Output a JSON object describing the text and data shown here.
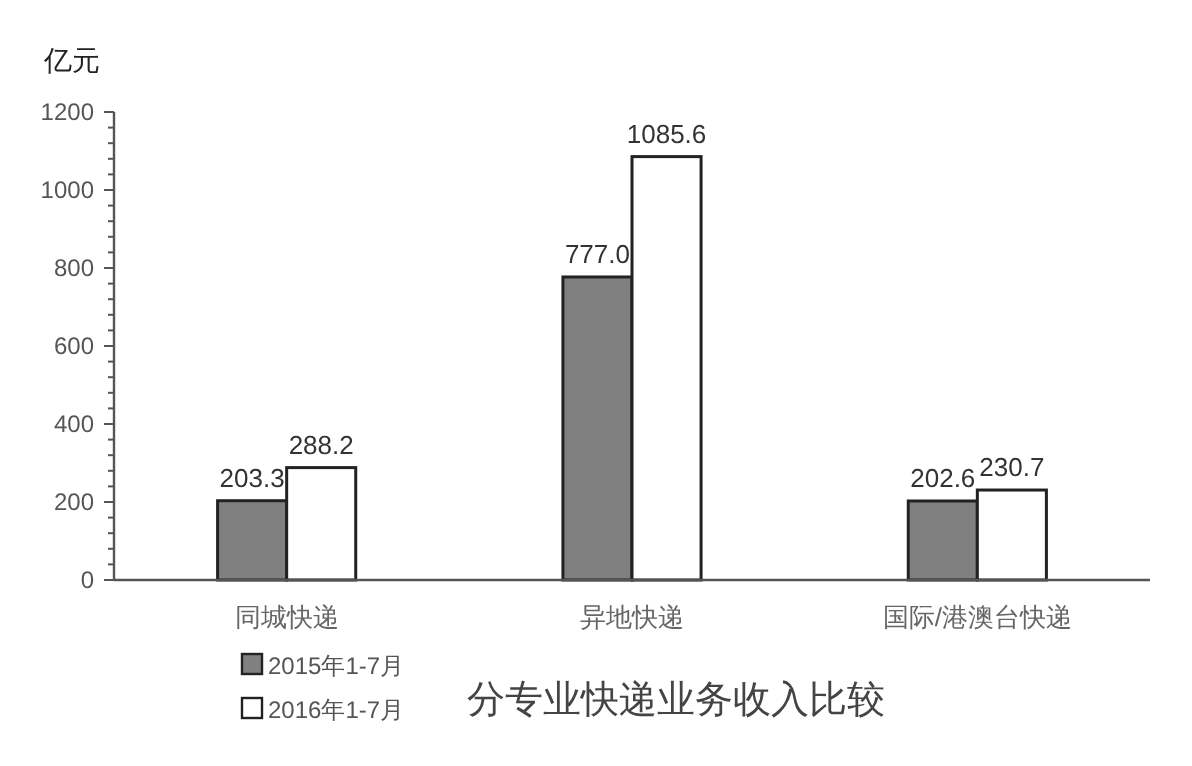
{
  "chart_data": {
    "type": "bar",
    "title": "分专业快递业务收入比较",
    "ylabel": "亿元",
    "categories": [
      "同城快递",
      "异地快递",
      "国际/港澳台快递"
    ],
    "series": [
      {
        "name": "2015年1-7月",
        "color": "#808080",
        "values": [
          203.3,
          777.0,
          202.6
        ],
        "value_labels": [
          "203.3",
          "777.0",
          "202.6"
        ]
      },
      {
        "name": "2016年1-7月",
        "color": "#ffffff",
        "values": [
          288.2,
          1085.6,
          230.7
        ],
        "value_labels": [
          "288.2",
          "1085.6",
          "230.7"
        ]
      }
    ],
    "ylim": [
      0,
      1200
    ],
    "yticks": [
      0,
      {
        "value": 40,
        "label": null
      },
      {
        "value": 80,
        "label": null
      },
      {
        "value": 120,
        "label": null
      },
      {
        "value": 160,
        "label": null
      },
      200,
      {
        "value": 240,
        "label": null
      },
      {
        "value": 280,
        "label": null
      },
      {
        "value": 320,
        "label": null
      },
      {
        "value": 360,
        "label": null
      },
      400,
      {
        "value": 440,
        "label": null
      },
      {
        "value": 480,
        "label": null
      },
      {
        "value": 520,
        "label": null
      },
      {
        "value": 560,
        "label": null
      },
      600,
      {
        "value": 640,
        "label": null
      },
      {
        "value": 680,
        "label": null
      },
      {
        "value": 720,
        "label": null
      },
      {
        "value": 760,
        "label": null
      },
      800,
      {
        "value": 840,
        "label": null
      },
      {
        "value": 880,
        "label": null
      },
      {
        "value": 920,
        "label": null
      },
      {
        "value": 960,
        "label": null
      },
      1000,
      {
        "value": 1040,
        "label": null
      },
      {
        "value": 1080,
        "label": null
      },
      {
        "value": 1120,
        "label": null
      },
      {
        "value": 1160,
        "label": null
      },
      1200
    ],
    "grid": false,
    "legend": "bottom left"
  }
}
